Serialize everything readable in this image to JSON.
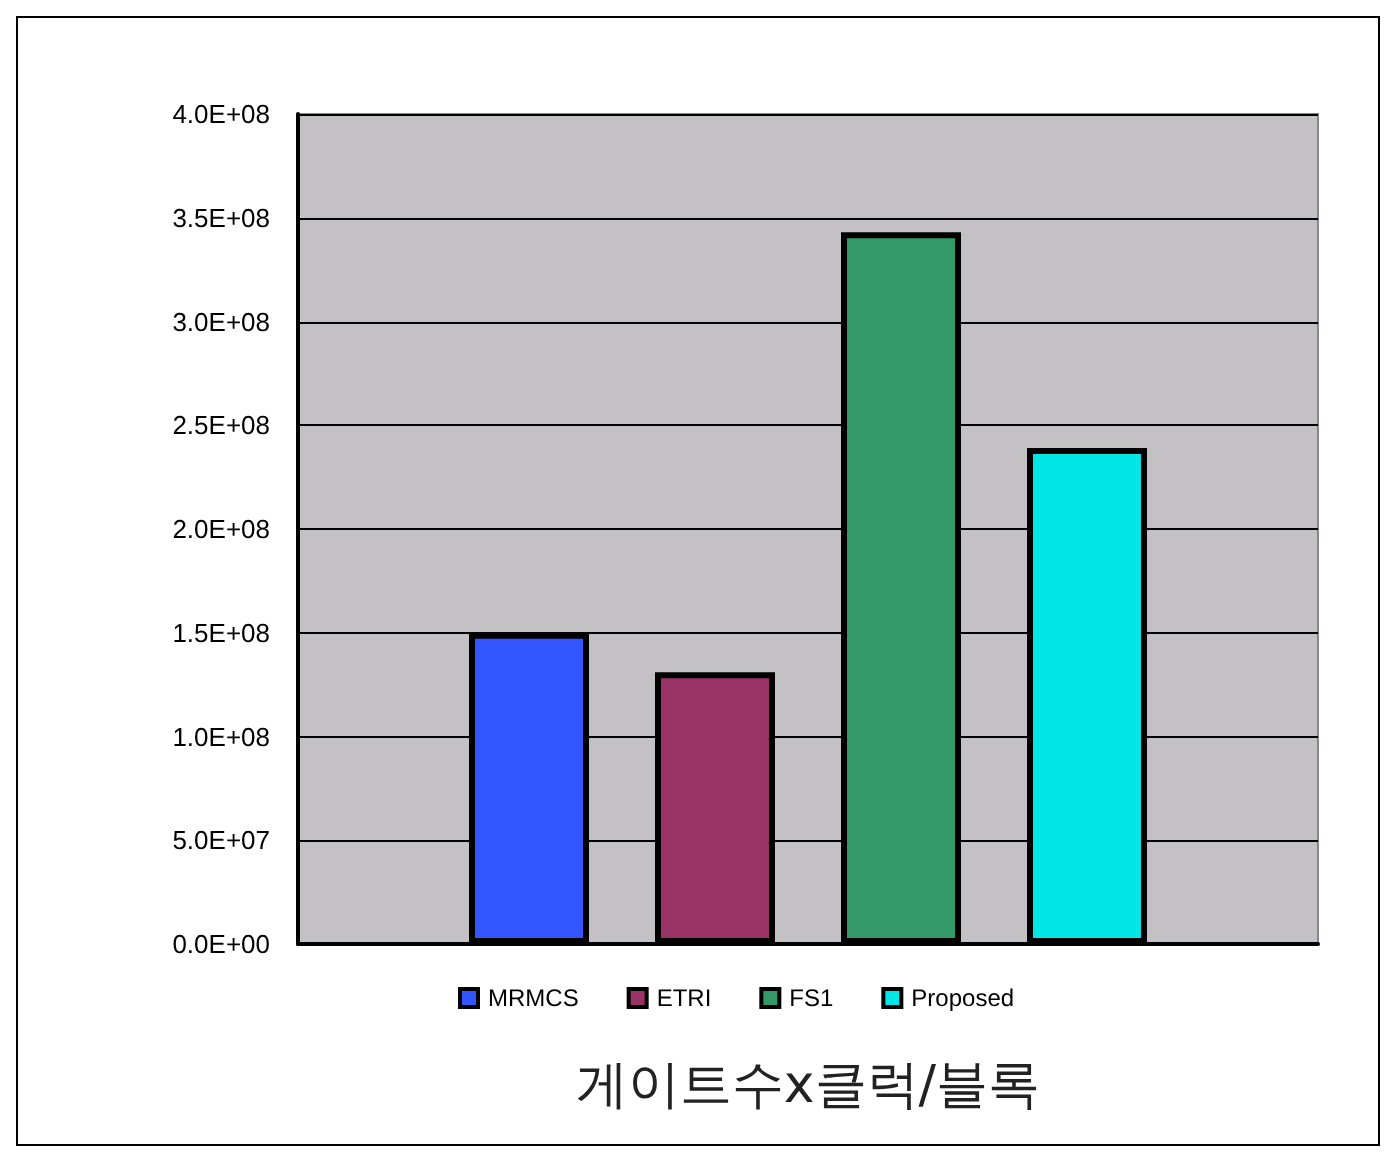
{
  "chart_data": {
    "type": "bar",
    "xlabel": "게이트수x클럭/블록",
    "categories": [
      null
    ],
    "series": [
      {
        "name": "MRMCS",
        "color": "#3355ff",
        "values": [
          150000000
        ]
      },
      {
        "name": "ETRI",
        "color": "#993366",
        "values": [
          131000000
        ]
      },
      {
        "name": "FS1",
        "color": "#339966",
        "values": [
          343000000
        ]
      },
      {
        "name": "Proposed",
        "color": "#00e5e5",
        "values": [
          239000000
        ]
      }
    ],
    "ylim": [
      0,
      400000000
    ],
    "yticks": [
      {
        "value": 0,
        "label": "0.0E+00"
      },
      {
        "value": 50000000,
        "label": "5.0E+07"
      },
      {
        "value": 100000000,
        "label": "1.0E+08"
      },
      {
        "value": 150000000,
        "label": "1.5E+08"
      },
      {
        "value": 200000000,
        "label": "2.0E+08"
      },
      {
        "value": 250000000,
        "label": "2.5E+08"
      },
      {
        "value": 300000000,
        "label": "3.0E+08"
      },
      {
        "value": 350000000,
        "label": "3.5E+08"
      },
      {
        "value": 400000000,
        "label": "4.0E+08"
      }
    ],
    "grid": "y",
    "legend": "bottom"
  }
}
